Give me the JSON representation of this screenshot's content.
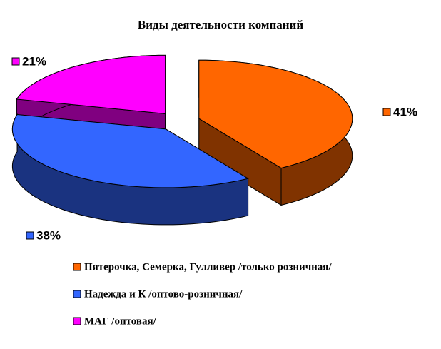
{
  "chart_data": {
    "type": "pie",
    "title": "Виды деятельности компаний",
    "categories": [
      "Пятерочка, Семерка, Гулливер /только розничная/",
      "Надежда и К /оптово-розничная/",
      "МАГ /оптовая/"
    ],
    "values": [
      41,
      38,
      21
    ],
    "value_labels": [
      "41%",
      "38%",
      "21%"
    ],
    "colors": [
      "#ff6600",
      "#3366ff",
      "#ff00ff"
    ]
  }
}
